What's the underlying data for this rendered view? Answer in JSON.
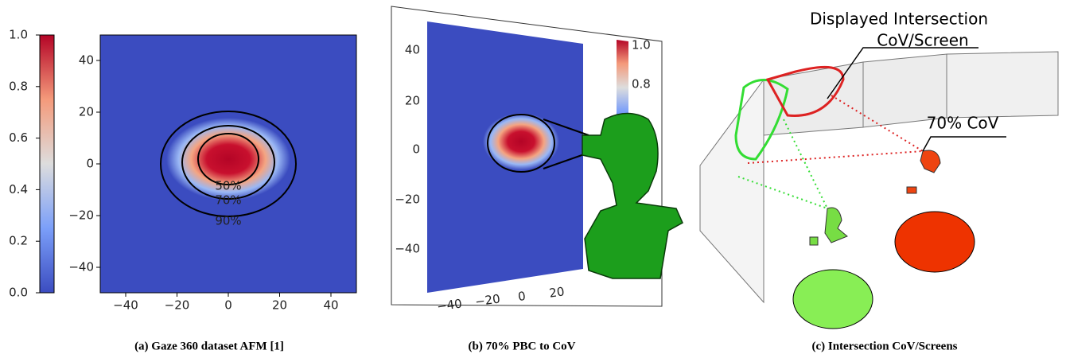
{
  "panels": [
    {
      "caption": "(a) Gaze 360 dataset AFM [1]",
      "colorbar_ticks": [
        "0.0",
        "0.2",
        "0.4",
        "0.6",
        "0.8",
        "1.0"
      ],
      "x_ticks": [
        "−40",
        "−20",
        "0",
        "20",
        "40"
      ],
      "y_ticks": [
        "−40",
        "−20",
        "0",
        "20",
        "40"
      ],
      "contour_labels": [
        "50%",
        "70%",
        "90%"
      ]
    },
    {
      "caption": "(b) 70% PBC to CoV",
      "colorbar_ticks": [
        "0.8",
        "1.0"
      ],
      "x_ticks": [
        "−40",
        "−20",
        "0",
        "20"
      ],
      "y_ticks": [
        "−40",
        "−20",
        "0",
        "20",
        "40"
      ]
    },
    {
      "caption": "(c) Intersection CoV/Screens",
      "annotations": [
        "Displayed Intersection",
        "CoV/Screen",
        "70% CoV"
      ]
    }
  ]
}
